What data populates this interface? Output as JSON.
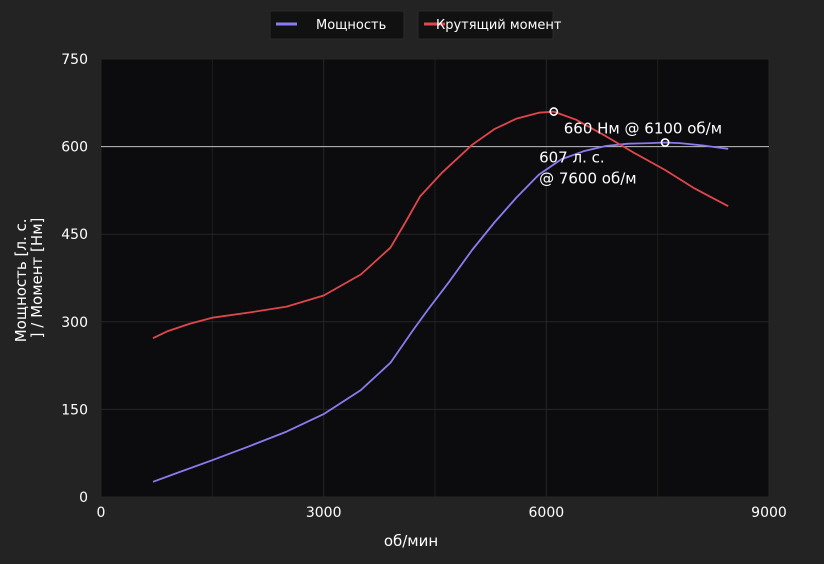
{
  "chart_data": {
    "type": "line",
    "xlabel": "об/мин",
    "ylabel_lines": [
      "Мощность [л. с.",
      "] / Момент [Нм]"
    ],
    "xlim": [
      0,
      9000
    ],
    "ylim": [
      0,
      750
    ],
    "xticks": [
      0,
      3000,
      6000,
      9000
    ],
    "yticks": [
      0,
      150,
      300,
      450,
      600,
      750
    ],
    "x_tick_labels": [
      "0",
      "3000",
      "6000",
      "9000"
    ],
    "y_tick_labels": [
      "0",
      "150",
      "300",
      "450",
      "600",
      "750"
    ],
    "grid": true,
    "legend_position": "top",
    "reference_line_y": 600,
    "series": [
      {
        "name": "Мощность",
        "color": "#8a7cf0",
        "x": [
          700,
          1000,
          1500,
          2000,
          2500,
          3000,
          3500,
          3900,
          4200,
          4400,
          4700,
          5000,
          5300,
          5600,
          5900,
          6200,
          6500,
          6800,
          7100,
          7400,
          7600,
          7800,
          8100,
          8450
        ],
        "y": [
          26,
          40,
          63,
          87,
          112,
          142,
          183,
          230,
          285,
          320,
          370,
          423,
          470,
          513,
          552,
          578,
          592,
          601,
          605,
          606,
          607,
          606,
          602,
          596
        ]
      },
      {
        "name": "Крутящий момент",
        "color": "#e0474c",
        "x": [
          700,
          900,
          1200,
          1500,
          2000,
          2500,
          3000,
          3500,
          3900,
          4100,
          4300,
          4600,
          5000,
          5300,
          5600,
          5900,
          6100,
          6400,
          6800,
          7200,
          7600,
          8000,
          8450
        ],
        "y": [
          272,
          284,
          297,
          307,
          316,
          326,
          345,
          381,
          427,
          470,
          515,
          556,
          603,
          630,
          648,
          658,
          660,
          646,
          618,
          588,
          560,
          528,
          498
        ]
      }
    ],
    "annotations": [
      {
        "lines": [
          "660 Нм @ 6100 об/м"
        ],
        "x": 6100,
        "y": 660,
        "series": "Крутящий момент"
      },
      {
        "lines": [
          "607 л. с.",
          "@ 7600 об/м"
        ],
        "x": 7600,
        "y": 607,
        "series": "Мощность"
      }
    ]
  }
}
